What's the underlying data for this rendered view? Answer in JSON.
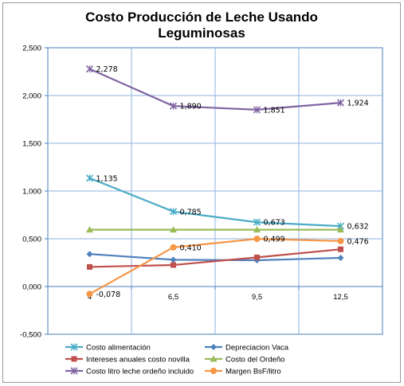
{
  "chart_data": {
    "type": "line",
    "title": [
      "Costo Producción de Leche Usando",
      "Leguminosas"
    ],
    "categories": [
      "4",
      "6,5",
      "9,5",
      "12,5"
    ],
    "ylim": [
      -0.5,
      2.5
    ],
    "ytick_labels": [
      "-0,500",
      "0,000",
      "0,500",
      "1,000",
      "1,500",
      "2,000",
      "2,500"
    ],
    "grid": true,
    "legend_position": "bottom",
    "series": [
      {
        "name": "Costo alimentación",
        "color": "#4bacc6",
        "marker": "x",
        "values": [
          1.135,
          0.785,
          0.673,
          0.632
        ],
        "labels": [
          "1,135",
          "0,785",
          "0,673",
          "0,632"
        ]
      },
      {
        "name": "Depreciacion Vaca",
        "color": "#4f81bd",
        "marker": "diamond",
        "values": [
          0.34,
          0.28,
          0.275,
          0.3
        ],
        "labels": null
      },
      {
        "name": "Intereses anuales costo novilla",
        "color": "#c0504d",
        "marker": "square",
        "values": [
          0.205,
          0.225,
          0.305,
          0.39
        ],
        "labels": null
      },
      {
        "name": "Costo del Ordeño",
        "color": "#9bbb59",
        "marker": "triangle",
        "values": [
          0.595,
          0.595,
          0.595,
          0.595
        ],
        "labels": null
      },
      {
        "name": "Costo litro leche ordeño incluido",
        "color": "#8064a2",
        "marker": "x",
        "values": [
          2.278,
          1.89,
          1.851,
          1.924
        ],
        "labels": [
          "2,278",
          "1,890",
          "1,851",
          "1,924"
        ]
      },
      {
        "name": "Margen BsF/litro",
        "color": "#f79646",
        "marker": "circle",
        "values": [
          -0.078,
          0.41,
          0.499,
          0.476
        ],
        "labels": [
          "-0,078",
          "0,410",
          "0,499",
          "0,476"
        ]
      }
    ]
  }
}
